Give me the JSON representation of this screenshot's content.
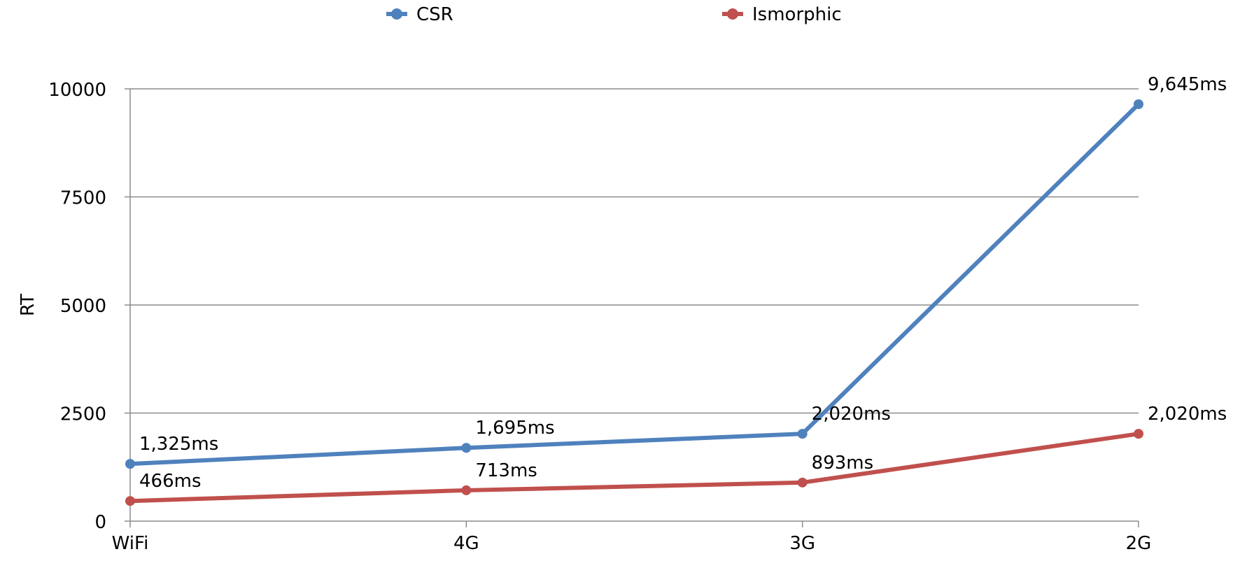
{
  "chart_data": {
    "type": "line",
    "title": "",
    "xlabel": "",
    "ylabel": "RT",
    "categories": [
      "WiFi",
      "4G",
      "3G",
      "2G"
    ],
    "ylim": [
      0,
      10000
    ],
    "yticks": [
      0,
      2500,
      5000,
      7500,
      10000
    ],
    "grid": true,
    "legend_position": "top",
    "series": [
      {
        "name": "CSR",
        "color": "#4f81bd",
        "values": [
          1325,
          1695,
          2020,
          9645
        ],
        "labels": [
          "1,325ms",
          "1,695ms",
          "2,020ms",
          "9,645ms"
        ]
      },
      {
        "name": "Ismorphic",
        "color": "#c0504d",
        "values": [
          466,
          713,
          893,
          2020
        ],
        "labels": [
          "466ms",
          "713ms",
          "893ms",
          "2,020ms"
        ]
      }
    ]
  }
}
